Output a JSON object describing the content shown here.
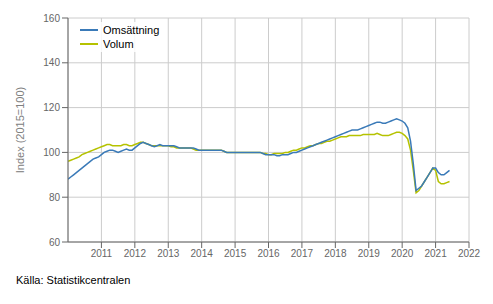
{
  "chart_data": {
    "type": "line",
    "ylabel": "Index (2015=100)",
    "source": "Källa: Statistikcentralen",
    "xlim": [
      2010.0,
      2022.0
    ],
    "xticks": [
      2011,
      2012,
      2013,
      2014,
      2015,
      2016,
      2017,
      2018,
      2019,
      2020,
      2021,
      2022
    ],
    "ylim": [
      60,
      160
    ],
    "yticks": [
      60,
      80,
      100,
      120,
      140,
      160
    ],
    "grid": true,
    "legend": "upper left",
    "x": [
      2010.0,
      2010.083,
      2010.167,
      2010.25,
      2010.333,
      2010.417,
      2010.5,
      2010.583,
      2010.667,
      2010.75,
      2010.833,
      2010.917,
      2011.0,
      2011.083,
      2011.167,
      2011.25,
      2011.333,
      2011.417,
      2011.5,
      2011.583,
      2011.667,
      2011.75,
      2011.833,
      2011.917,
      2012.0,
      2012.083,
      2012.167,
      2012.25,
      2012.333,
      2012.417,
      2012.5,
      2012.583,
      2012.667,
      2012.75,
      2012.833,
      2012.917,
      2013.0,
      2013.083,
      2013.167,
      2013.25,
      2013.333,
      2013.417,
      2013.5,
      2013.583,
      2013.667,
      2013.75,
      2013.833,
      2013.917,
      2014.0,
      2014.083,
      2014.167,
      2014.25,
      2014.333,
      2014.417,
      2014.5,
      2014.583,
      2014.667,
      2014.75,
      2014.833,
      2014.917,
      2015.0,
      2015.083,
      2015.167,
      2015.25,
      2015.333,
      2015.417,
      2015.5,
      2015.583,
      2015.667,
      2015.75,
      2015.833,
      2015.917,
      2016.0,
      2016.083,
      2016.167,
      2016.25,
      2016.333,
      2016.417,
      2016.5,
      2016.583,
      2016.667,
      2016.75,
      2016.833,
      2016.917,
      2017.0,
      2017.083,
      2017.167,
      2017.25,
      2017.333,
      2017.417,
      2017.5,
      2017.583,
      2017.667,
      2017.75,
      2017.833,
      2017.917,
      2018.0,
      2018.083,
      2018.167,
      2018.25,
      2018.333,
      2018.417,
      2018.5,
      2018.583,
      2018.667,
      2018.75,
      2018.833,
      2018.917,
      2019.0,
      2019.083,
      2019.167,
      2019.25,
      2019.333,
      2019.417,
      2019.5,
      2019.583,
      2019.667,
      2019.75,
      2019.833,
      2019.917,
      2020.0,
      2020.083,
      2020.167,
      2020.25,
      2020.333,
      2020.417,
      2020.5,
      2020.583,
      2020.667,
      2020.75,
      2020.833,
      2020.917,
      2021.0,
      2021.083,
      2021.167,
      2021.25,
      2021.333,
      2021.417
    ],
    "series": [
      {
        "name": "Omsättning",
        "color": "#3a7ab8",
        "values": [
          88,
          89,
          90,
          91,
          92,
          93,
          94,
          95,
          96,
          97,
          97.5,
          98,
          99,
          100,
          100.5,
          101,
          101,
          100.5,
          100,
          100.5,
          101,
          101.5,
          101,
          101,
          102,
          103,
          104,
          104.5,
          104,
          103.5,
          103,
          102.5,
          103,
          103.5,
          103,
          103,
          103,
          103,
          103,
          102.5,
          102,
          102,
          102,
          102,
          102,
          102,
          101.5,
          101,
          101,
          101,
          101,
          101,
          101,
          101,
          101,
          101,
          100.5,
          100,
          100,
          100,
          100,
          100,
          100,
          100,
          100,
          100,
          100,
          100,
          100,
          100,
          99.5,
          99,
          99,
          99,
          99,
          98.5,
          98.5,
          99,
          99,
          99,
          99.5,
          100,
          100,
          100.5,
          101,
          101.5,
          102,
          102.5,
          103,
          103.5,
          104,
          104.5,
          105,
          105.5,
          106,
          106.5,
          107,
          107.5,
          108,
          108.5,
          109,
          109.5,
          110,
          110,
          110,
          110.5,
          111,
          111.5,
          112,
          112.5,
          113,
          113.5,
          113.5,
          113,
          113,
          113.5,
          114,
          114.5,
          115,
          114.5,
          114,
          113,
          111,
          105,
          95,
          83,
          84,
          85,
          87,
          89,
          91,
          93,
          93,
          91,
          90,
          90,
          91,
          92
        ]
      },
      {
        "name": "Volum",
        "color": "#b5c200",
        "values": [
          96,
          96.5,
          97,
          97.5,
          98,
          99,
          99.5,
          100,
          100.5,
          101,
          101.5,
          102,
          102.5,
          103,
          103.5,
          103.5,
          103,
          103,
          103,
          103,
          103.5,
          103.5,
          103,
          103,
          103.5,
          104,
          104.5,
          104.5,
          104,
          103.5,
          103,
          103,
          103,
          103,
          103,
          103,
          103,
          102.5,
          102.5,
          102,
          102,
          102,
          102,
          102,
          102,
          101.5,
          101,
          101,
          101,
          101,
          101,
          101,
          101,
          101,
          101,
          101,
          100.5,
          100,
          100,
          100,
          100,
          100,
          100,
          100,
          100,
          100,
          100,
          100,
          100,
          100,
          99.5,
          99.5,
          99,
          99,
          99.5,
          99.5,
          99.5,
          99.5,
          100,
          100,
          100.5,
          101,
          101,
          101.5,
          102,
          102,
          102.5,
          103,
          103,
          103.5,
          104,
          104,
          104.5,
          105,
          105,
          105.5,
          106,
          106.5,
          107,
          107,
          107,
          107.5,
          107.5,
          107.5,
          107.5,
          107.5,
          108,
          108,
          108,
          108,
          108,
          108.5,
          108,
          107.5,
          107.5,
          107.5,
          108,
          108.5,
          109,
          109,
          108.5,
          107.5,
          106,
          101,
          92,
          82,
          83,
          85,
          87,
          89,
          91,
          93,
          92,
          87,
          86,
          86,
          86.5,
          87
        ]
      }
    ]
  }
}
